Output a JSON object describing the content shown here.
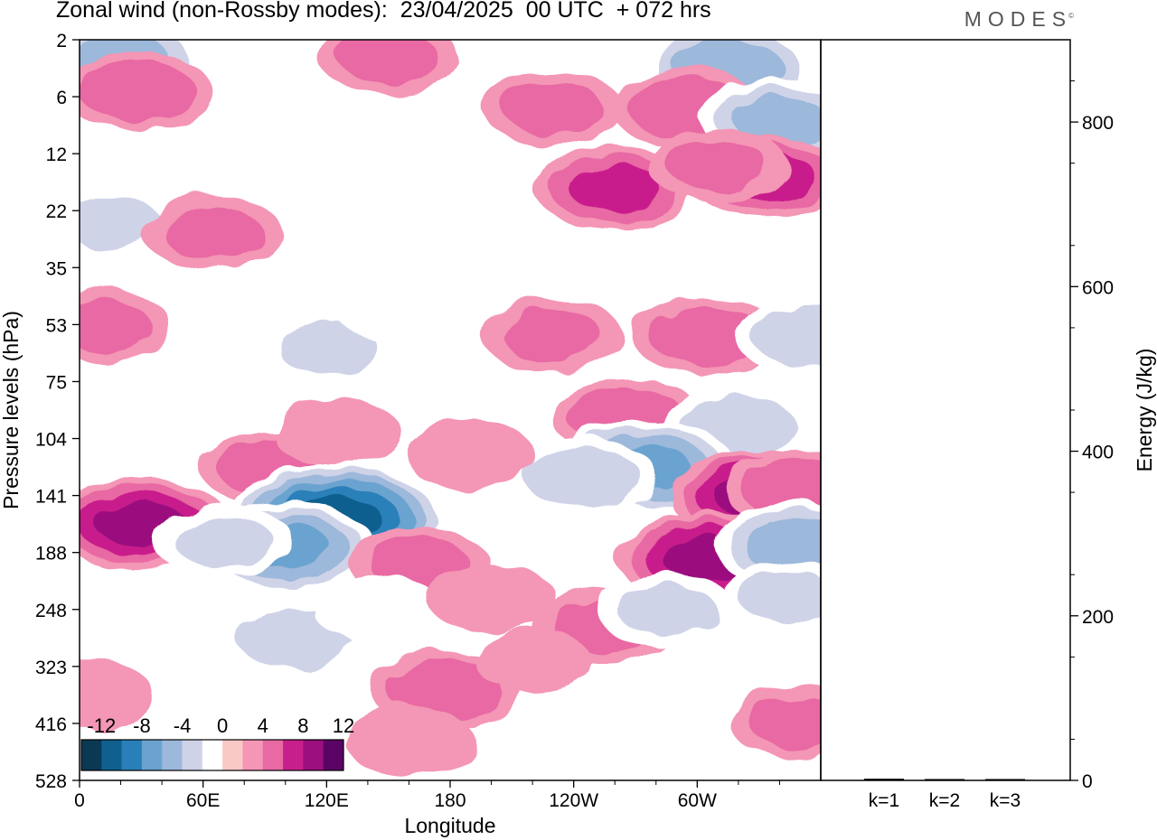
{
  "header": {
    "title": "Zonal wind (non-Rossby modes):  23/04/2025  00 UTC  + 072 hrs",
    "logo": "MODES",
    "logo_mark": "©"
  },
  "chart_data": [
    {
      "type": "heatmap",
      "title": "Zonal wind (non-Rossby modes):  23/04/2025  00 UTC  + 072 hrs",
      "xlabel": "Longitude",
      "ylabel": "Pressure levels (hPa)",
      "x_ticks": [
        "0",
        "60E",
        "120E",
        "180",
        "120W",
        "60W"
      ],
      "x_range_deg_east": [
        0,
        360
      ],
      "y_ticks": [
        "2",
        "6",
        "12",
        "22",
        "35",
        "53",
        "75",
        "104",
        "141",
        "188",
        "248",
        "323",
        "416",
        "528"
      ],
      "colorbar": {
        "tick_labels": [
          "-12",
          "-8",
          "-4",
          "0",
          "4",
          "8",
          "12"
        ],
        "levels": [
          -14,
          -12,
          -10,
          -8,
          -6,
          -4,
          -2,
          2,
          4,
          6,
          8,
          10,
          12,
          14
        ],
        "colors": [
          "#0b3954",
          "#0f5f8f",
          "#2980b9",
          "#6aa3cf",
          "#9cb8da",
          "#cfd3e8",
          "#ffffff",
          "#f9c9c6",
          "#f496b5",
          "#e869a3",
          "#c91f8c",
          "#9b0f7e",
          "#5c0466"
        ]
      },
      "anomalies": [
        {
          "lon": 20,
          "lev": 0.3,
          "v": -6
        },
        {
          "lon": 315,
          "lev": 0.5,
          "v": -7
        },
        {
          "lon": 28,
          "lev": 0.9,
          "v": 5
        },
        {
          "lon": 150,
          "lev": 0.3,
          "v": 4
        },
        {
          "lon": 230,
          "lev": 1.2,
          "v": 4
        },
        {
          "lon": 295,
          "lev": 1.2,
          "v": 5
        },
        {
          "lon": 340,
          "lev": 1.4,
          "v": -6
        },
        {
          "lon": 260,
          "lev": 2.6,
          "v": 6
        },
        {
          "lon": 335,
          "lev": 2.4,
          "v": 6
        },
        {
          "lon": 310,
          "lev": 2.2,
          "v": 4
        },
        {
          "lon": 15,
          "lev": 3.2,
          "v": -4
        },
        {
          "lon": 65,
          "lev": 3.4,
          "v": 4
        },
        {
          "lon": 10,
          "lev": 5.0,
          "v": 4
        },
        {
          "lon": 120,
          "lev": 5.4,
          "v": -4
        },
        {
          "lon": 155,
          "lev": 4.7,
          "v": -3
        },
        {
          "lon": 230,
          "lev": 5.2,
          "v": 4
        },
        {
          "lon": 305,
          "lev": 5.2,
          "v": 5
        },
        {
          "lon": 355,
          "lev": 5.2,
          "v": -5
        },
        {
          "lon": 265,
          "lev": 6.6,
          "v": 5
        },
        {
          "lon": 320,
          "lev": 6.8,
          "v": -5
        },
        {
          "lon": 95,
          "lev": 7.5,
          "v": 5
        },
        {
          "lon": 125,
          "lev": 6.9,
          "v": 3
        },
        {
          "lon": 275,
          "lev": 7.5,
          "v": -8
        },
        {
          "lon": 245,
          "lev": 7.7,
          "v": -5
        },
        {
          "lon": 30,
          "lev": 8.5,
          "v": 8
        },
        {
          "lon": 125,
          "lev": 8.4,
          "v": -12
        },
        {
          "lon": 100,
          "lev": 8.9,
          "v": -8
        },
        {
          "lon": 70,
          "lev": 8.8,
          "v": -4
        },
        {
          "lon": 330,
          "lev": 8.0,
          "v": 8
        },
        {
          "lon": 305,
          "lev": 9.1,
          "v": 8
        },
        {
          "lon": 350,
          "lev": 7.9,
          "v": 5
        },
        {
          "lon": 350,
          "lev": 8.9,
          "v": -7
        },
        {
          "lon": 165,
          "lev": 9.2,
          "v": 4
        },
        {
          "lon": 190,
          "lev": 7.3,
          "v": 3
        },
        {
          "lon": 105,
          "lev": 10.5,
          "v": -5
        },
        {
          "lon": 145,
          "lev": 10.0,
          "v": -3
        },
        {
          "lon": 200,
          "lev": 9.8,
          "v": 3
        },
        {
          "lon": 255,
          "lev": 10.3,
          "v": 4
        },
        {
          "lon": 285,
          "lev": 10.0,
          "v": -4
        },
        {
          "lon": 345,
          "lev": 9.8,
          "v": -4
        },
        {
          "lon": 178,
          "lev": 11.4,
          "v": 5
        },
        {
          "lon": 220,
          "lev": 10.9,
          "v": 2
        },
        {
          "lon": 5,
          "lev": 11.5,
          "v": 3
        },
        {
          "lon": 350,
          "lev": 12.0,
          "v": 4
        },
        {
          "lon": 160,
          "lev": 12.3,
          "v": 3
        }
      ]
    },
    {
      "type": "bar",
      "ylabel": "Energy (J/kg)",
      "categories": [
        "k=1",
        "k=2",
        "k=3"
      ],
      "values": [
        2,
        1,
        1
      ],
      "ylim": [
        0,
        900
      ],
      "y_ticks": [
        "0",
        "200",
        "400",
        "600",
        "800"
      ]
    }
  ]
}
